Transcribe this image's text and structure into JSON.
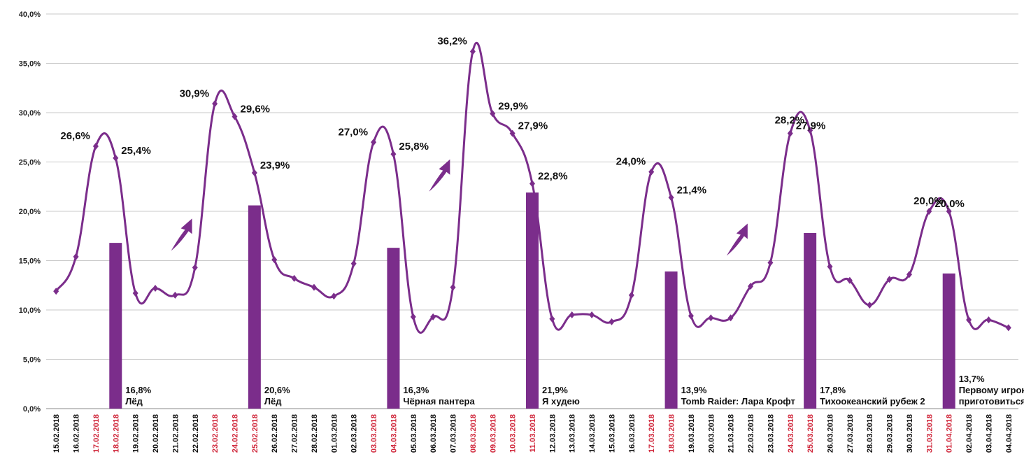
{
  "chart_data": {
    "type": "line",
    "title": "",
    "xlabel": "",
    "ylabel": "",
    "ylim": [
      0,
      40
    ],
    "y_ticks": [
      "0,0%",
      "5,0%",
      "10,0%",
      "15,0%",
      "20,0%",
      "25,0%",
      "30,0%",
      "35,0%",
      "40,0%"
    ],
    "grid": true,
    "colors": {
      "series": "#7b2d8b",
      "bars": "#7b2d8b",
      "grid": "#c8c8c8",
      "weekend_label": "#d0283c",
      "weekday_label": "#111111"
    },
    "categories": [
      "15.02.2018",
      "16.02.2018",
      "17.02.2018",
      "18.02.2018",
      "19.02.2018",
      "20.02.2018",
      "21.02.2018",
      "22.02.2018",
      "23.02.2018",
      "24.02.2018",
      "25.02.2018",
      "26.02.2018",
      "27.02.2018",
      "28.02.2018",
      "01.03.2018",
      "02.03.2018",
      "03.03.2018",
      "04.03.2018",
      "05.03.2018",
      "06.03.2018",
      "07.03.2018",
      "08.03.2018",
      "09.03.2018",
      "10.03.2018",
      "11.03.2018",
      "12.03.2018",
      "13.03.2018",
      "14.03.2018",
      "15.03.2018",
      "16.03.2018",
      "17.03.2018",
      "18.03.2018",
      "19.03.2018",
      "20.03.2018",
      "21.03.2018",
      "22.03.2018",
      "23.03.2018",
      "24.03.2018",
      "25.03.2018",
      "26.03.2018",
      "27.03.2018",
      "28.03.2018",
      "29.03.2018",
      "30.03.2018",
      "31.03.2018",
      "01.04.2018",
      "02.04.2018",
      "03.04.2018",
      "04.04.2018"
    ],
    "weekend_categories": [
      "17.02.2018",
      "18.02.2018",
      "23.02.2018",
      "24.02.2018",
      "25.02.2018",
      "03.03.2018",
      "04.03.2018",
      "08.03.2018",
      "09.03.2018",
      "10.03.2018",
      "11.03.2018",
      "17.03.2018",
      "18.03.2018",
      "24.03.2018",
      "25.03.2018",
      "31.03.2018",
      "01.04.2018"
    ],
    "series": [
      {
        "values": [
          11.9,
          15.4,
          26.6,
          25.4,
          11.7,
          12.2,
          11.5,
          14.3,
          30.9,
          29.6,
          23.9,
          15.1,
          13.2,
          12.3,
          11.4,
          14.7,
          27.0,
          25.8,
          9.3,
          9.3,
          12.3,
          36.2,
          29.9,
          27.9,
          22.8,
          9.1,
          9.5,
          9.5,
          8.8,
          11.5,
          24.0,
          21.4,
          9.4,
          9.2,
          9.2,
          12.4,
          14.8,
          27.9,
          28.2,
          14.4,
          13.0,
          10.5,
          13.1,
          13.6,
          20.0,
          20.0,
          9.0,
          9.0,
          8.2
        ]
      }
    ],
    "point_labels": [
      {
        "index": 2,
        "text": "26,6%"
      },
      {
        "index": 3,
        "text": "25,4%"
      },
      {
        "index": 8,
        "text": "30,9%"
      },
      {
        "index": 9,
        "text": "29,6%"
      },
      {
        "index": 10,
        "text": "23,9%"
      },
      {
        "index": 16,
        "text": "27,0%"
      },
      {
        "index": 17,
        "text": "25,8%"
      },
      {
        "index": 21,
        "text": "36,2%"
      },
      {
        "index": 22,
        "text": "29,9%"
      },
      {
        "index": 23,
        "text": "27,9%"
      },
      {
        "index": 24,
        "text": "22,8%"
      },
      {
        "index": 30,
        "text": "24,0%"
      },
      {
        "index": 31,
        "text": "21,4%"
      },
      {
        "index": 37,
        "text": "27,9%"
      },
      {
        "index": 38,
        "text": "28,2%"
      },
      {
        "index": 44,
        "text": "20,0%"
      },
      {
        "index": 45,
        "text": "20,0%"
      }
    ],
    "bars": [
      {
        "index": 3,
        "value": 16.8,
        "value_label": "16,8%",
        "lines": [
          "Лёд"
        ]
      },
      {
        "index": 10,
        "value": 20.6,
        "value_label": "20,6%",
        "lines": [
          "Лёд"
        ]
      },
      {
        "index": 17,
        "value": 16.3,
        "value_label": "16,3%",
        "lines": [
          "Чёрная пантера"
        ]
      },
      {
        "index": 24,
        "value": 21.9,
        "value_label": "21,9%",
        "lines": [
          "Я худею"
        ]
      },
      {
        "index": 31,
        "value": 13.9,
        "value_label": "13,9%",
        "lines": [
          "Tomb Raider: Лара Крофт"
        ]
      },
      {
        "index": 38,
        "value": 17.8,
        "value_label": "17,8%",
        "lines": [
          "Тихоокеанский рубеж 2"
        ]
      },
      {
        "index": 45,
        "value": 13.7,
        "value_label": "13,7%",
        "lines": [
          "Первому игроку",
          "приготовиться"
        ]
      }
    ],
    "arrows": [
      {
        "x_index": 6.5,
        "y_value": 16.0
      },
      {
        "x_index": 19.5,
        "y_value": 22.0
      },
      {
        "x_index": 34.5,
        "y_value": 15.5
      }
    ]
  }
}
